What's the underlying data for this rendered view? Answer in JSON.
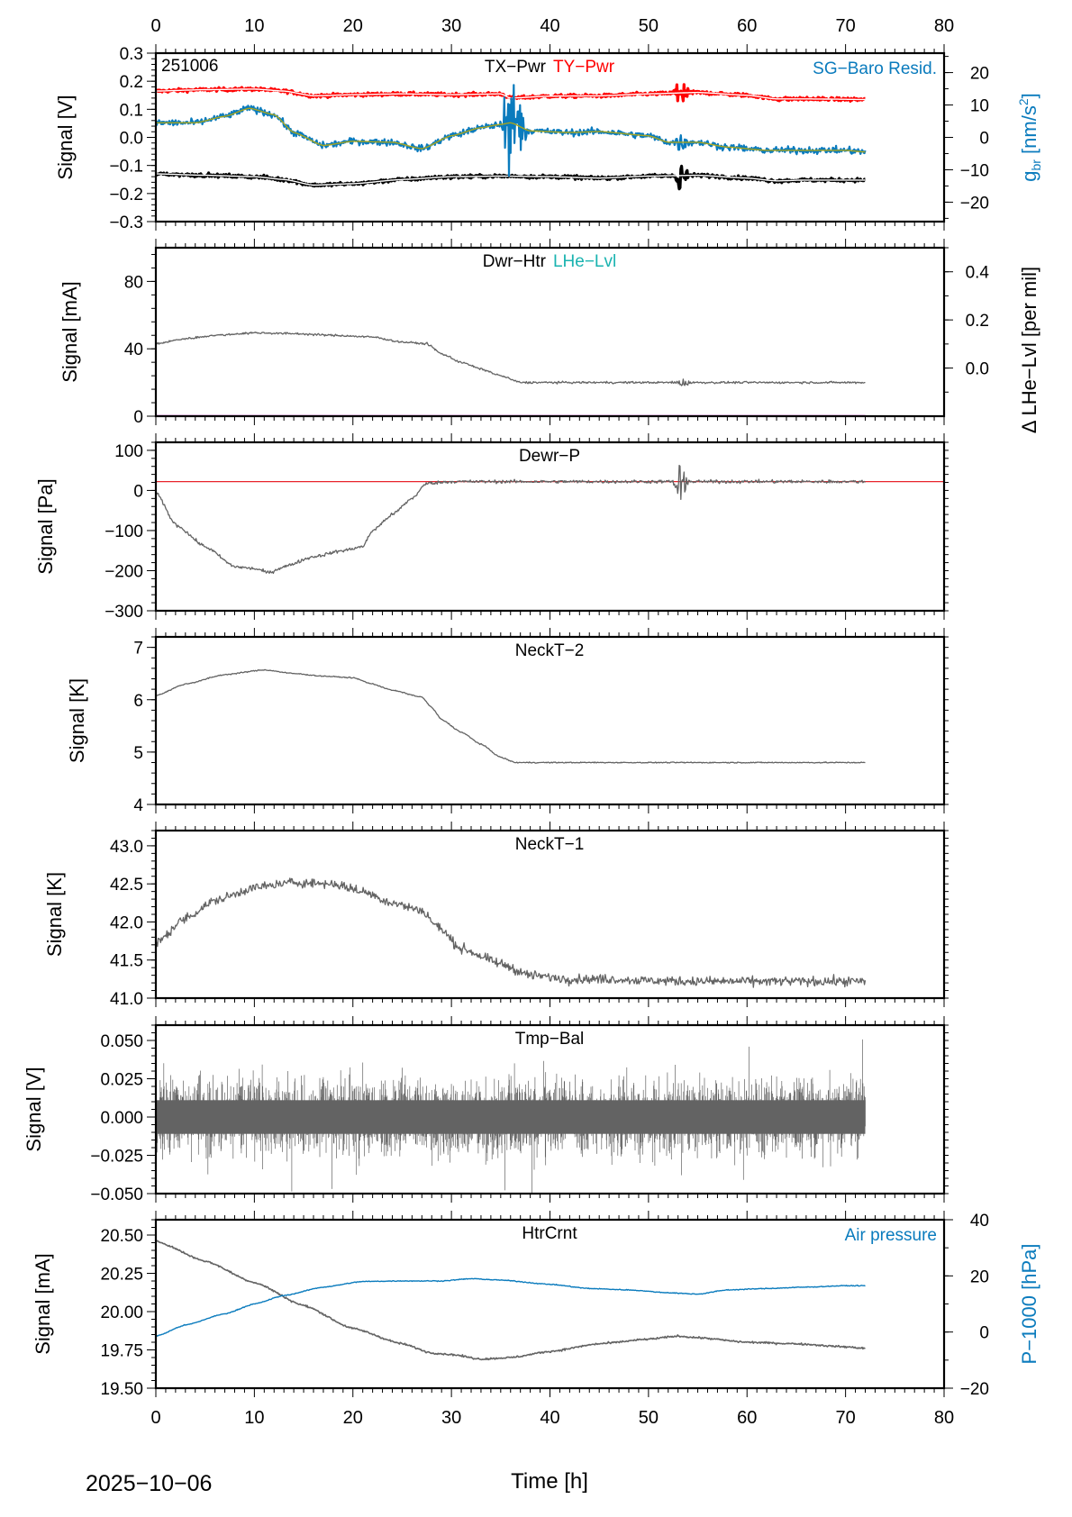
{
  "figure": {
    "date_label": "2025−10−06",
    "x_axis_title": "Time [h]",
    "x_ticks": [
      "0",
      "10",
      "20",
      "30",
      "40",
      "50",
      "60",
      "70",
      "80"
    ]
  },
  "chart_data": [
    {
      "type": "line",
      "id": "p1",
      "title_parts": [
        {
          "text": "TX−Pwr",
          "color": "#000000"
        },
        {
          "text": "TY−Pwr",
          "color": "#ff0000"
        }
      ],
      "corner_label": "251006",
      "right_legend": {
        "text": "SG−Baro Resid.",
        "color": "#0a7bbd"
      },
      "ylabel": "Signal [V]",
      "ylabel_right": "g_br [nm/s^2]",
      "ylabel_right_main": "g",
      "ylabel_right_sub": "br",
      "ylabel_right_unit_pre": " [nm/s",
      "ylabel_right_unit_sup": "2",
      "ylabel_right_unit_post": "]",
      "ylabel_right_color": "#0a7bbd",
      "xlim": [
        0,
        80
      ],
      "ylim": [
        -0.3,
        0.3
      ],
      "yticks": [
        "0.3",
        "0.2",
        "0.1",
        "0.0",
        "−0.1",
        "−0.2",
        "−0.3"
      ],
      "ytick_values": [
        0.3,
        0.2,
        0.1,
        0.0,
        -0.1,
        -0.2,
        -0.3
      ],
      "ylim_right": [
        -26,
        26
      ],
      "yticks_right": [
        "20",
        "10",
        "0",
        "−10",
        "−20"
      ],
      "ytick_values_right": [
        20,
        10,
        0,
        -10,
        -20
      ],
      "series": [
        {
          "name": "TY-Pwr",
          "color": "#ff0000",
          "noise": 0.006,
          "width": 3.2,
          "axis": "left",
          "x": [
            0,
            5,
            10,
            13,
            16,
            20,
            25,
            30,
            35,
            36,
            40,
            45,
            50,
            55,
            60,
            63,
            66,
            72
          ],
          "y": [
            0.165,
            0.17,
            0.172,
            0.165,
            0.148,
            0.152,
            0.155,
            0.152,
            0.155,
            0.14,
            0.147,
            0.148,
            0.155,
            0.16,
            0.15,
            0.137,
            0.137,
            0.135
          ],
          "inner_line": "#ffffff",
          "bursts": [
            {
              "x": 53.3,
              "amp": 0.05
            }
          ]
        },
        {
          "name": "TX-Pwr",
          "color": "#000000",
          "noise": 0.006,
          "width": 3.2,
          "axis": "left",
          "x": [
            0,
            5,
            10,
            13,
            16,
            20,
            25,
            30,
            35,
            40,
            45,
            50,
            55,
            60,
            63,
            66,
            72
          ],
          "y": [
            -0.13,
            -0.135,
            -0.14,
            -0.15,
            -0.17,
            -0.165,
            -0.15,
            -0.14,
            -0.138,
            -0.14,
            -0.145,
            -0.138,
            -0.135,
            -0.145,
            -0.155,
            -0.152,
            -0.152
          ],
          "inner_line": "#ffffff",
          "bursts": [
            {
              "x": 53.3,
              "amp": 0.06
            }
          ]
        },
        {
          "name": "SG-Baro Resid.",
          "color": "#0a7bbd",
          "noise": 1.0,
          "width": 2.2,
          "axis": "right",
          "x": [
            0,
            4,
            7,
            9.5,
            12,
            14,
            17,
            20,
            24,
            27,
            30,
            33,
            35,
            36,
            38,
            42,
            45,
            50,
            52,
            55,
            58,
            62,
            66,
            70,
            72
          ],
          "y": [
            4.5,
            4.5,
            6.5,
            9.0,
            7.0,
            1.5,
            -2.5,
            -1.2,
            -1.5,
            -3.5,
            0.5,
            3.0,
            4.0,
            4.5,
            2.0,
            1.5,
            1.8,
            0.5,
            -1.5,
            -1.5,
            -3.0,
            -4.0,
            -4.0,
            -4.0,
            -4.5
          ],
          "smooth_color": "#a7a51e",
          "bursts": [
            {
              "x": 35.9,
              "amp": 24
            },
            {
              "x": 36.9,
              "amp": 10
            },
            {
              "x": 53.3,
              "amp": 3
            }
          ]
        }
      ]
    },
    {
      "type": "line",
      "id": "p2",
      "title_parts": [
        {
          "text": "Dwr−Htr",
          "color": "#000000"
        },
        {
          "text": "LHe−Lvl",
          "color": "#1ab3b0"
        }
      ],
      "ylabel": "Signal [mA]",
      "ylabel_right": "Δ LHe−Lvl [per mil]",
      "xlim": [
        0,
        80
      ],
      "ylim": [
        0,
        100
      ],
      "yticks": [
        "80",
        "40",
        "0"
      ],
      "ytick_values": [
        80,
        40,
        0
      ],
      "ylim_right": [
        -0.2,
        0.5
      ],
      "yticks_right": [
        "0.4",
        "0.2",
        "0.0"
      ],
      "ytick_values_right": [
        0.4,
        0.2,
        0.0
      ],
      "series": [
        {
          "name": "Dwr-Htr",
          "color": "#636363",
          "noise": 0.6,
          "width": 1.3,
          "axis": "left",
          "x": [
            0,
            3,
            6,
            10,
            14,
            18,
            22,
            25,
            27.5,
            29,
            31,
            33,
            35,
            37,
            40,
            45,
            50,
            55,
            60,
            65,
            72
          ],
          "y": [
            43,
            46,
            48,
            49.5,
            49,
            48,
            47,
            44,
            43,
            37,
            32,
            28,
            24,
            20,
            20,
            20,
            20,
            20,
            20,
            20,
            20
          ],
          "bursts": [
            {
              "x": 53.5,
              "amp": 3
            }
          ]
        },
        {
          "name": "LHe-Lvl",
          "color": "#c010c0",
          "noise": 0,
          "width": 2.5,
          "axis": "left",
          "x": [
            0,
            72
          ],
          "y": [
            0,
            0
          ]
        }
      ]
    },
    {
      "type": "line",
      "id": "p3",
      "title_parts": [
        {
          "text": "Dewr−P",
          "color": "#000000"
        }
      ],
      "ylabel": "Signal [Pa]",
      "xlim": [
        0,
        80
      ],
      "ylim": [
        -300,
        120
      ],
      "yticks": [
        "100",
        "0",
        "−100",
        "−200",
        "−300"
      ],
      "ytick_values": [
        100,
        0,
        -100,
        -200,
        -300
      ],
      "reference_line": {
        "value": 22,
        "color": "#e8242b"
      },
      "series": [
        {
          "name": "Dewr-P",
          "color": "#636363",
          "noise": 4,
          "width": 1.3,
          "axis": "left",
          "x": [
            0,
            2,
            5,
            8,
            10,
            11.5,
            13,
            16,
            19,
            21,
            22,
            24,
            26,
            27.5,
            30,
            35,
            40,
            45,
            50,
            55,
            60,
            65,
            72
          ],
          "y": [
            -5,
            -85,
            -140,
            -190,
            -195,
            -205,
            -190,
            -165,
            -150,
            -140,
            -100,
            -60,
            -20,
            18,
            22,
            22,
            22,
            22,
            22,
            22,
            22,
            22,
            22
          ],
          "bursts": [
            {
              "x": 53.3,
              "amp": 50
            }
          ]
        }
      ]
    },
    {
      "type": "line",
      "id": "p4",
      "title_parts": [
        {
          "text": "NeckT−2",
          "color": "#000000"
        }
      ],
      "ylabel": "Signal [K]",
      "xlim": [
        0,
        80
      ],
      "ylim": [
        4,
        7.2
      ],
      "yticks": [
        "7",
        "6",
        "5",
        "4"
      ],
      "ytick_values": [
        7,
        6,
        5,
        4
      ],
      "series": [
        {
          "name": "NeckT-2",
          "color": "#636363",
          "noise": 0.01,
          "width": 1.3,
          "axis": "left",
          "x": [
            0,
            3,
            7,
            11,
            14,
            17,
            20,
            22,
            24,
            27,
            28,
            29,
            31,
            33,
            35,
            36.5,
            40,
            50,
            60,
            72
          ],
          "y": [
            6.08,
            6.3,
            6.48,
            6.57,
            6.5,
            6.45,
            6.42,
            6.3,
            6.18,
            6.05,
            5.85,
            5.62,
            5.38,
            5.15,
            4.9,
            4.8,
            4.8,
            4.8,
            4.8,
            4.8
          ]
        }
      ]
    },
    {
      "type": "line",
      "id": "p5",
      "title_parts": [
        {
          "text": "NeckT−1",
          "color": "#000000"
        }
      ],
      "ylabel": "Signal [K]",
      "xlim": [
        0,
        80
      ],
      "ylim": [
        41.0,
        43.2
      ],
      "yticks": [
        "43.0",
        "42.5",
        "42.0",
        "41.5",
        "41.0"
      ],
      "ytick_values": [
        43.0,
        42.5,
        42.0,
        41.5,
        41.0
      ],
      "series": [
        {
          "name": "NeckT-1",
          "color": "#636363",
          "noise": 0.06,
          "width": 1.3,
          "axis": "left",
          "x": [
            0,
            3,
            6,
            10,
            14,
            18,
            21,
            24,
            27,
            28.5,
            31,
            35,
            38,
            42,
            46,
            50,
            55,
            60,
            65,
            72
          ],
          "y": [
            41.72,
            42.05,
            42.28,
            42.45,
            42.52,
            42.5,
            42.4,
            42.25,
            42.15,
            41.95,
            41.65,
            41.45,
            41.3,
            41.25,
            41.25,
            41.23,
            41.22,
            41.22,
            41.22,
            41.22
          ]
        }
      ]
    },
    {
      "type": "line",
      "id": "p6",
      "title_parts": [
        {
          "text": "Tmp−Bal",
          "color": "#000000"
        }
      ],
      "ylabel": "Signal [V]",
      "xlim": [
        0,
        80
      ],
      "ylim": [
        -0.05,
        0.06
      ],
      "yticks": [
        "0.050",
        "0.025",
        "0.000",
        "−0.025",
        "−0.050"
      ],
      "ytick_values": [
        0.05,
        0.025,
        0.0,
        -0.025,
        -0.05
      ],
      "series": [
        {
          "name": "Tmp-Bal",
          "color": "#636363",
          "noise": 0.016,
          "width": 1.0,
          "axis": "left",
          "dense": true,
          "x": [
            0,
            72
          ],
          "y": [
            0,
            0
          ]
        }
      ]
    },
    {
      "type": "line",
      "id": "p7",
      "title_parts": [
        {
          "text": "HtrCrnt",
          "color": "#000000"
        }
      ],
      "right_legend": {
        "text": "Air pressure",
        "color": "#0a7bbd"
      },
      "ylabel": "Signal [mA]",
      "ylabel_right": "P−1000 [hPa]",
      "ylabel_right_color": "#0a7bbd",
      "xlim": [
        0,
        80
      ],
      "ylim": [
        19.5,
        20.6
      ],
      "yticks": [
        "20.50",
        "20.25",
        "20.00",
        "19.75",
        "19.50"
      ],
      "ytick_values": [
        20.5,
        20.25,
        20.0,
        19.75,
        19.5
      ],
      "ylim_right": [
        -20,
        40
      ],
      "yticks_right": [
        "40",
        "20",
        "0",
        "−20"
      ],
      "ytick_values_right": [
        40,
        20,
        0,
        -20
      ],
      "series": [
        {
          "name": "HtrCrnt",
          "color": "#636363",
          "noise": 0.006,
          "width": 1.6,
          "axis": "left",
          "x": [
            0,
            5,
            10,
            15,
            20,
            25,
            28,
            30,
            33,
            36,
            40,
            45,
            50,
            53,
            55,
            60,
            65,
            70,
            72
          ],
          "y": [
            20.46,
            20.33,
            20.19,
            20.04,
            19.89,
            19.79,
            19.73,
            19.72,
            19.69,
            19.7,
            19.74,
            19.79,
            19.82,
            19.84,
            19.83,
            19.8,
            19.79,
            19.77,
            19.76
          ]
        },
        {
          "name": "Air pressure",
          "color": "#0a7bbd",
          "noise": 0.15,
          "width": 1.4,
          "axis": "right",
          "x": [
            0,
            3,
            7,
            10,
            13,
            17,
            21,
            25,
            29,
            32,
            35,
            40,
            44,
            48,
            52,
            55,
            58,
            62,
            66,
            70,
            72
          ],
          "y": [
            -1.5,
            2.5,
            6.5,
            10,
            13,
            16,
            18,
            18.2,
            18.2,
            19,
            18.5,
            17,
            15.5,
            15,
            14,
            13.5,
            15,
            15.5,
            16,
            16.5,
            16.5
          ]
        }
      ]
    }
  ]
}
